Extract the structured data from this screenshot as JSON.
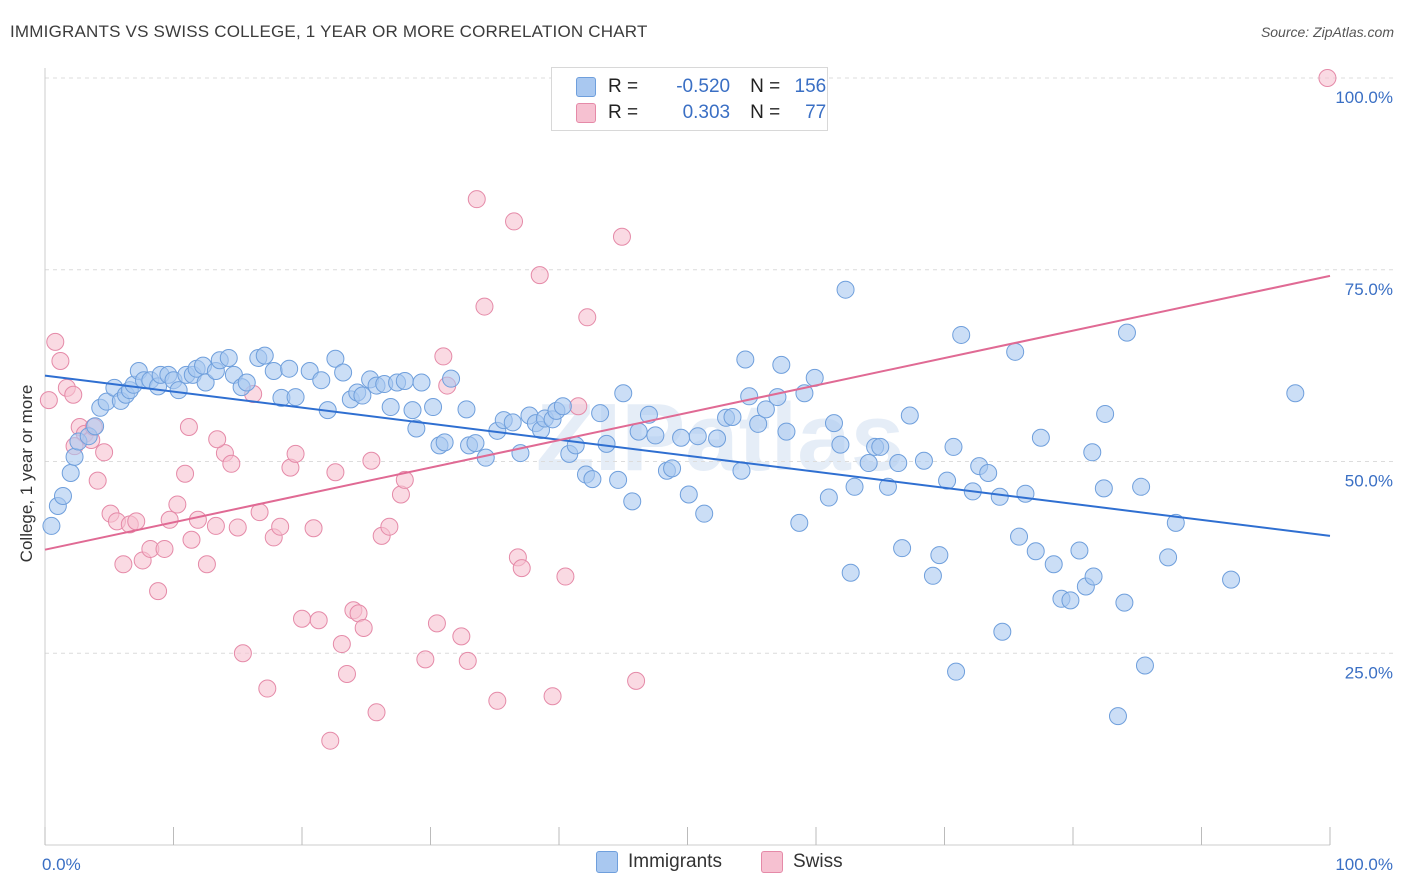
{
  "title": "IMMIGRANTS VS SWISS COLLEGE, 1 YEAR OR MORE CORRELATION CHART",
  "source": "Source: ZipAtlas.com",
  "watermark": "ZIPatlas",
  "colors": {
    "blue_fill": "#a9c8f0",
    "blue_stroke": "#6f9fdc",
    "blue_line": "#2f6fd1",
    "pink_fill": "#f6c1d1",
    "pink_stroke": "#e58aa8",
    "pink_line": "#e06a94",
    "tick_text": "#3a6fc4",
    "grid": "#dcdcdc"
  },
  "legend": {
    "rows": [
      {
        "r_label": "R =",
        "r_value": "-0.520",
        "n_label": "N =",
        "n_value": "156",
        "series": "Immigrants"
      },
      {
        "r_label": "R =",
        "r_value": "0.303",
        "n_label": "N =",
        "n_value": "77",
        "series": "Swiss"
      }
    ]
  },
  "bottom_legend": [
    "Immigrants",
    "Swiss"
  ],
  "chart_data": {
    "type": "scatter",
    "ylabel": "College, 1 year or more",
    "xlabel": "",
    "xlim": [
      0,
      100
    ],
    "ylim": [
      0,
      100
    ],
    "x_tick_labels": [
      "0.0%",
      "100.0%"
    ],
    "y_ticks": [
      {
        "value": 25,
        "label": "25.0%"
      },
      {
        "value": 50,
        "label": "50.0%"
      },
      {
        "value": 75,
        "label": "75.0%"
      },
      {
        "value": 100,
        "label": "100.0%"
      }
    ],
    "grid": true,
    "legend_placement": "top-center",
    "series": [
      {
        "name": "Immigrants",
        "trend": {
          "x": [
            0,
            100
          ],
          "y": [
            61.2,
            40.3
          ]
        },
        "points": [
          [
            0.5,
            41.6
          ],
          [
            1,
            44.2
          ],
          [
            1.4,
            45.5
          ],
          [
            2,
            48.5
          ],
          [
            2.3,
            50.6
          ],
          [
            2.6,
            52.6
          ],
          [
            3.4,
            53.3
          ],
          [
            3.9,
            54.6
          ],
          [
            4.3,
            57.0
          ],
          [
            4.8,
            57.8
          ],
          [
            5.4,
            59.6
          ],
          [
            5.9,
            57.9
          ],
          [
            6.3,
            58.7
          ],
          [
            6.6,
            59.3
          ],
          [
            6.9,
            60.0
          ],
          [
            7.3,
            61.8
          ],
          [
            7.7,
            60.6
          ],
          [
            8.2,
            60.6
          ],
          [
            8.8,
            59.8
          ],
          [
            9,
            61.3
          ],
          [
            9.6,
            61.3
          ],
          [
            10,
            60.6
          ],
          [
            10.4,
            59.3
          ],
          [
            11,
            61.3
          ],
          [
            11.5,
            61.3
          ],
          [
            11.8,
            62.1
          ],
          [
            12.3,
            62.5
          ],
          [
            12.5,
            60.3
          ],
          [
            13.3,
            61.8
          ],
          [
            13.6,
            63.2
          ],
          [
            14.3,
            63.5
          ],
          [
            14.7,
            61.3
          ],
          [
            15.3,
            59.7
          ],
          [
            15.7,
            60.3
          ],
          [
            16.6,
            63.5
          ],
          [
            17.1,
            63.8
          ],
          [
            17.8,
            61.8
          ],
          [
            18.4,
            58.3
          ],
          [
            19,
            62.1
          ],
          [
            19.5,
            58.4
          ],
          [
            20.6,
            61.8
          ],
          [
            21.5,
            60.6
          ],
          [
            22,
            56.7
          ],
          [
            22.6,
            63.4
          ],
          [
            23.2,
            61.6
          ],
          [
            23.8,
            58.1
          ],
          [
            24.3,
            59.0
          ],
          [
            24.7,
            58.6
          ],
          [
            25.3,
            60.7
          ],
          [
            25.8,
            59.9
          ],
          [
            26.4,
            60.1
          ],
          [
            26.9,
            57.1
          ],
          [
            27.4,
            60.3
          ],
          [
            28,
            60.5
          ],
          [
            28.6,
            56.7
          ],
          [
            28.9,
            54.3
          ],
          [
            29.3,
            60.3
          ],
          [
            30.2,
            57.1
          ],
          [
            30.7,
            52.1
          ],
          [
            31.1,
            52.5
          ],
          [
            31.6,
            60.8
          ],
          [
            32.8,
            56.8
          ],
          [
            33,
            52.1
          ],
          [
            33.5,
            52.4
          ],
          [
            34.3,
            50.5
          ],
          [
            35.2,
            54.0
          ],
          [
            35.7,
            55.4
          ],
          [
            36.4,
            55.1
          ],
          [
            37,
            51.1
          ],
          [
            37.7,
            56.0
          ],
          [
            38.2,
            55.0
          ],
          [
            38.6,
            54.1
          ],
          [
            38.9,
            55.6
          ],
          [
            39.5,
            55.5
          ],
          [
            39.8,
            56.6
          ],
          [
            40.3,
            57.2
          ],
          [
            40.8,
            51.0
          ],
          [
            41.3,
            52.1
          ],
          [
            42.1,
            48.3
          ],
          [
            42.6,
            47.7
          ],
          [
            43.2,
            56.3
          ],
          [
            43.7,
            52.3
          ],
          [
            44.6,
            47.6
          ],
          [
            45,
            58.9
          ],
          [
            45.7,
            44.8
          ],
          [
            46.2,
            53.9
          ],
          [
            47,
            56.1
          ],
          [
            47.5,
            53.4
          ],
          [
            48.4,
            48.8
          ],
          [
            48.8,
            49.1
          ],
          [
            49.5,
            53.1
          ],
          [
            50.1,
            45.7
          ],
          [
            50.8,
            53.3
          ],
          [
            51.3,
            43.2
          ],
          [
            52.3,
            53.0
          ],
          [
            53,
            55.7
          ],
          [
            53.5,
            55.8
          ],
          [
            54.2,
            48.8
          ],
          [
            54.8,
            58.5
          ],
          [
            55.5,
            54.9
          ],
          [
            56.1,
            56.8
          ],
          [
            57.3,
            62.6
          ],
          [
            57.7,
            53.9
          ],
          [
            59.1,
            58.9
          ],
          [
            59.9,
            60.9
          ],
          [
            58.7,
            42.0
          ],
          [
            61,
            45.3
          ],
          [
            61.4,
            55.0
          ],
          [
            61.9,
            52.2
          ],
          [
            62.3,
            72.4
          ],
          [
            62.7,
            35.5
          ],
          [
            63,
            46.7
          ],
          [
            64.1,
            49.8
          ],
          [
            64.6,
            51.9
          ],
          [
            65,
            51.9
          ],
          [
            65.6,
            46.7
          ],
          [
            66.4,
            49.8
          ],
          [
            66.7,
            38.7
          ],
          [
            67.3,
            56.0
          ],
          [
            68.4,
            50.1
          ],
          [
            69.1,
            35.1
          ],
          [
            69.6,
            37.8
          ],
          [
            70.2,
            47.5
          ],
          [
            70.7,
            51.9
          ],
          [
            71.3,
            66.5
          ],
          [
            72.2,
            46.1
          ],
          [
            72.7,
            49.4
          ],
          [
            73.4,
            48.5
          ],
          [
            74.3,
            45.4
          ],
          [
            74.5,
            27.8
          ],
          [
            75.5,
            64.3
          ],
          [
            75.8,
            40.2
          ],
          [
            76.3,
            45.8
          ],
          [
            77.1,
            38.3
          ],
          [
            77.5,
            53.1
          ],
          [
            78.5,
            36.6
          ],
          [
            79.1,
            32.1
          ],
          [
            79.8,
            31.9
          ],
          [
            80.5,
            38.4
          ],
          [
            81,
            33.7
          ],
          [
            81.6,
            35.0
          ],
          [
            82.4,
            46.5
          ],
          [
            82.5,
            56.2
          ],
          [
            84.2,
            66.8
          ],
          [
            84,
            31.6
          ],
          [
            85.3,
            46.7
          ],
          [
            85.6,
            23.4
          ],
          [
            87.4,
            37.5
          ],
          [
            88,
            42.0
          ],
          [
            92.3,
            34.6
          ],
          [
            97.3,
            58.9
          ],
          [
            83.5,
            16.8
          ],
          [
            70.9,
            22.6
          ],
          [
            81.5,
            51.2
          ],
          [
            57,
            58.4
          ],
          [
            54.5,
            63.3
          ]
        ]
      },
      {
        "name": "Swiss",
        "trend": {
          "x": [
            0,
            100
          ],
          "y": [
            38.5,
            74.2
          ]
        },
        "points": [
          [
            0.3,
            58.0
          ],
          [
            0.8,
            65.6
          ],
          [
            1.2,
            63.1
          ],
          [
            1.7,
            59.6
          ],
          [
            2.2,
            58.7
          ],
          [
            2.7,
            54.5
          ],
          [
            3.1,
            53.6
          ],
          [
            3.6,
            52.8
          ],
          [
            4.1,
            47.5
          ],
          [
            4.6,
            51.2
          ],
          [
            5.1,
            43.2
          ],
          [
            5.6,
            42.2
          ],
          [
            6.1,
            36.6
          ],
          [
            6.6,
            41.8
          ],
          [
            7.1,
            42.2
          ],
          [
            7.6,
            37.1
          ],
          [
            8.2,
            38.6
          ],
          [
            8.8,
            33.1
          ],
          [
            9.3,
            38.6
          ],
          [
            9.7,
            42.4
          ],
          [
            10.3,
            44.4
          ],
          [
            10.9,
            48.4
          ],
          [
            11.4,
            39.8
          ],
          [
            11.9,
            42.4
          ],
          [
            12.6,
            36.6
          ],
          [
            13.3,
            41.6
          ],
          [
            14,
            51.1
          ],
          [
            14.5,
            49.7
          ],
          [
            15,
            41.4
          ],
          [
            15.4,
            25.0
          ],
          [
            16.2,
            58.8
          ],
          [
            16.7,
            43.4
          ],
          [
            17.3,
            20.4
          ],
          [
            17.8,
            40.1
          ],
          [
            18.3,
            41.5
          ],
          [
            19.1,
            49.2
          ],
          [
            19.5,
            51.0
          ],
          [
            20,
            29.5
          ],
          [
            20.9,
            41.3
          ],
          [
            21.3,
            29.3
          ],
          [
            22.2,
            13.6
          ],
          [
            22.6,
            48.6
          ],
          [
            23.1,
            26.2
          ],
          [
            23.5,
            22.3
          ],
          [
            24,
            30.6
          ],
          [
            24.4,
            30.2
          ],
          [
            24.8,
            28.3
          ],
          [
            25.4,
            50.1
          ],
          [
            25.8,
            17.3
          ],
          [
            26.2,
            40.3
          ],
          [
            26.8,
            41.5
          ],
          [
            27.7,
            45.7
          ],
          [
            28,
            47.6
          ],
          [
            29.6,
            24.2
          ],
          [
            30.5,
            28.9
          ],
          [
            31,
            63.7
          ],
          [
            31.3,
            59.9
          ],
          [
            32.4,
            27.2
          ],
          [
            32.9,
            24.0
          ],
          [
            33.6,
            84.2
          ],
          [
            34.2,
            70.2
          ],
          [
            35.2,
            18.8
          ],
          [
            36.5,
            81.3
          ],
          [
            36.8,
            37.5
          ],
          [
            37.1,
            36.1
          ],
          [
            38.5,
            74.3
          ],
          [
            39.5,
            19.4
          ],
          [
            40.5,
            35.0
          ],
          [
            41.5,
            57.2
          ],
          [
            42.2,
            68.8
          ],
          [
            44.9,
            79.3
          ],
          [
            46,
            21.4
          ],
          [
            99.8,
            100
          ],
          [
            2.3,
            52.0
          ],
          [
            13.4,
            52.9
          ],
          [
            3.8,
            54.5
          ],
          [
            11.2,
            54.5
          ]
        ]
      }
    ]
  }
}
